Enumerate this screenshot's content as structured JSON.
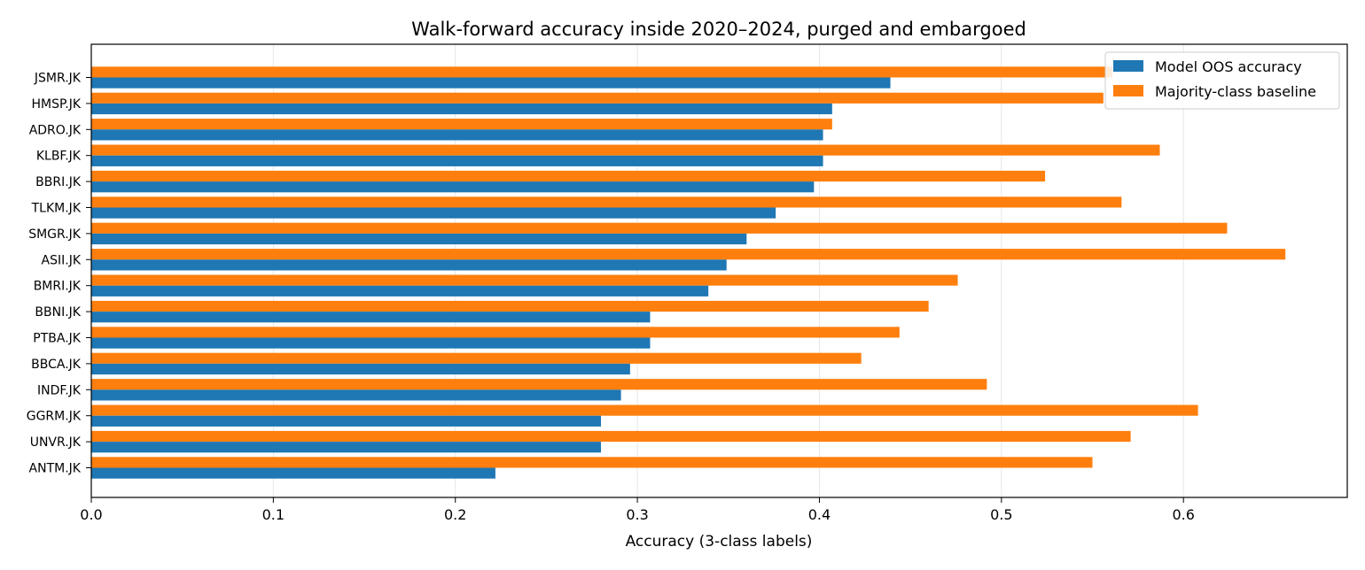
{
  "chart_data": {
    "type": "bar",
    "orientation": "horizontal",
    "title": "Walk-forward accuracy inside 2020–2024, purged and embargoed",
    "xlabel": "Accuracy (3-class labels)",
    "ylabel": "",
    "xlim": [
      0.0,
      0.69
    ],
    "x_ticks": [
      "0.0",
      "0.1",
      "0.2",
      "0.3",
      "0.4",
      "0.5",
      "0.6"
    ],
    "x_tick_values": [
      0.0,
      0.1,
      0.2,
      0.3,
      0.4,
      0.5,
      0.6
    ],
    "grid": "x",
    "legend_position": "top-right",
    "categories": [
      "JSMR.JK",
      "HMSP.JK",
      "ADRO.JK",
      "KLBF.JK",
      "BBRI.JK",
      "TLKM.JK",
      "SMGR.JK",
      "ASII.JK",
      "BMRI.JK",
      "BBNI.JK",
      "PTBA.JK",
      "BBCA.JK",
      "INDF.JK",
      "GGRM.JK",
      "UNVR.JK",
      "ANTM.JK"
    ],
    "series": [
      {
        "name": "Model OOS accuracy",
        "color": "#1f77b4",
        "values": [
          0.439,
          0.407,
          0.402,
          0.402,
          0.397,
          0.376,
          0.36,
          0.349,
          0.339,
          0.307,
          0.307,
          0.296,
          0.291,
          0.28,
          0.28,
          0.222
        ]
      },
      {
        "name": "Majority-class baseline",
        "color": "#ff7f0e",
        "values": [
          0.561,
          0.556,
          0.407,
          0.587,
          0.524,
          0.566,
          0.624,
          0.656,
          0.476,
          0.46,
          0.444,
          0.423,
          0.492,
          0.608,
          0.571,
          0.55
        ]
      }
    ]
  }
}
